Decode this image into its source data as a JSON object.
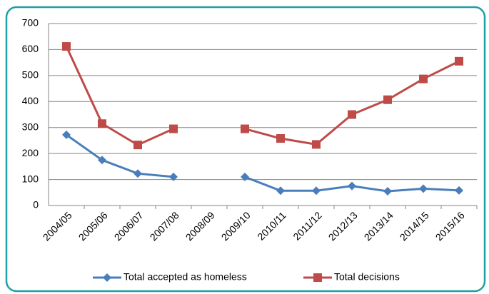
{
  "chart_data": {
    "type": "line",
    "categories": [
      "2004/05",
      "2005/06",
      "2006/07",
      "2007/08",
      "2008/09",
      "2009/10",
      "2010/11",
      "2011/12",
      "2012/13",
      "2013/14",
      "2014/15",
      "2015/16"
    ],
    "series": [
      {
        "name": "Total accepted as homeless",
        "color": "#4a7ebb",
        "marker": "diamond",
        "values": [
          272,
          175,
          123,
          110,
          null,
          110,
          57,
          57,
          75,
          55,
          65,
          58
        ]
      },
      {
        "name": "Total decisions",
        "color": "#be4b48",
        "marker": "square",
        "values": [
          612,
          315,
          233,
          295,
          null,
          295,
          258,
          235,
          350,
          407,
          487,
          555
        ]
      }
    ],
    "ylim": [
      0,
      700
    ],
    "yticks": [
      0,
      100,
      200,
      300,
      400,
      500,
      600,
      700
    ],
    "grid": true,
    "legend": "bottom"
  }
}
